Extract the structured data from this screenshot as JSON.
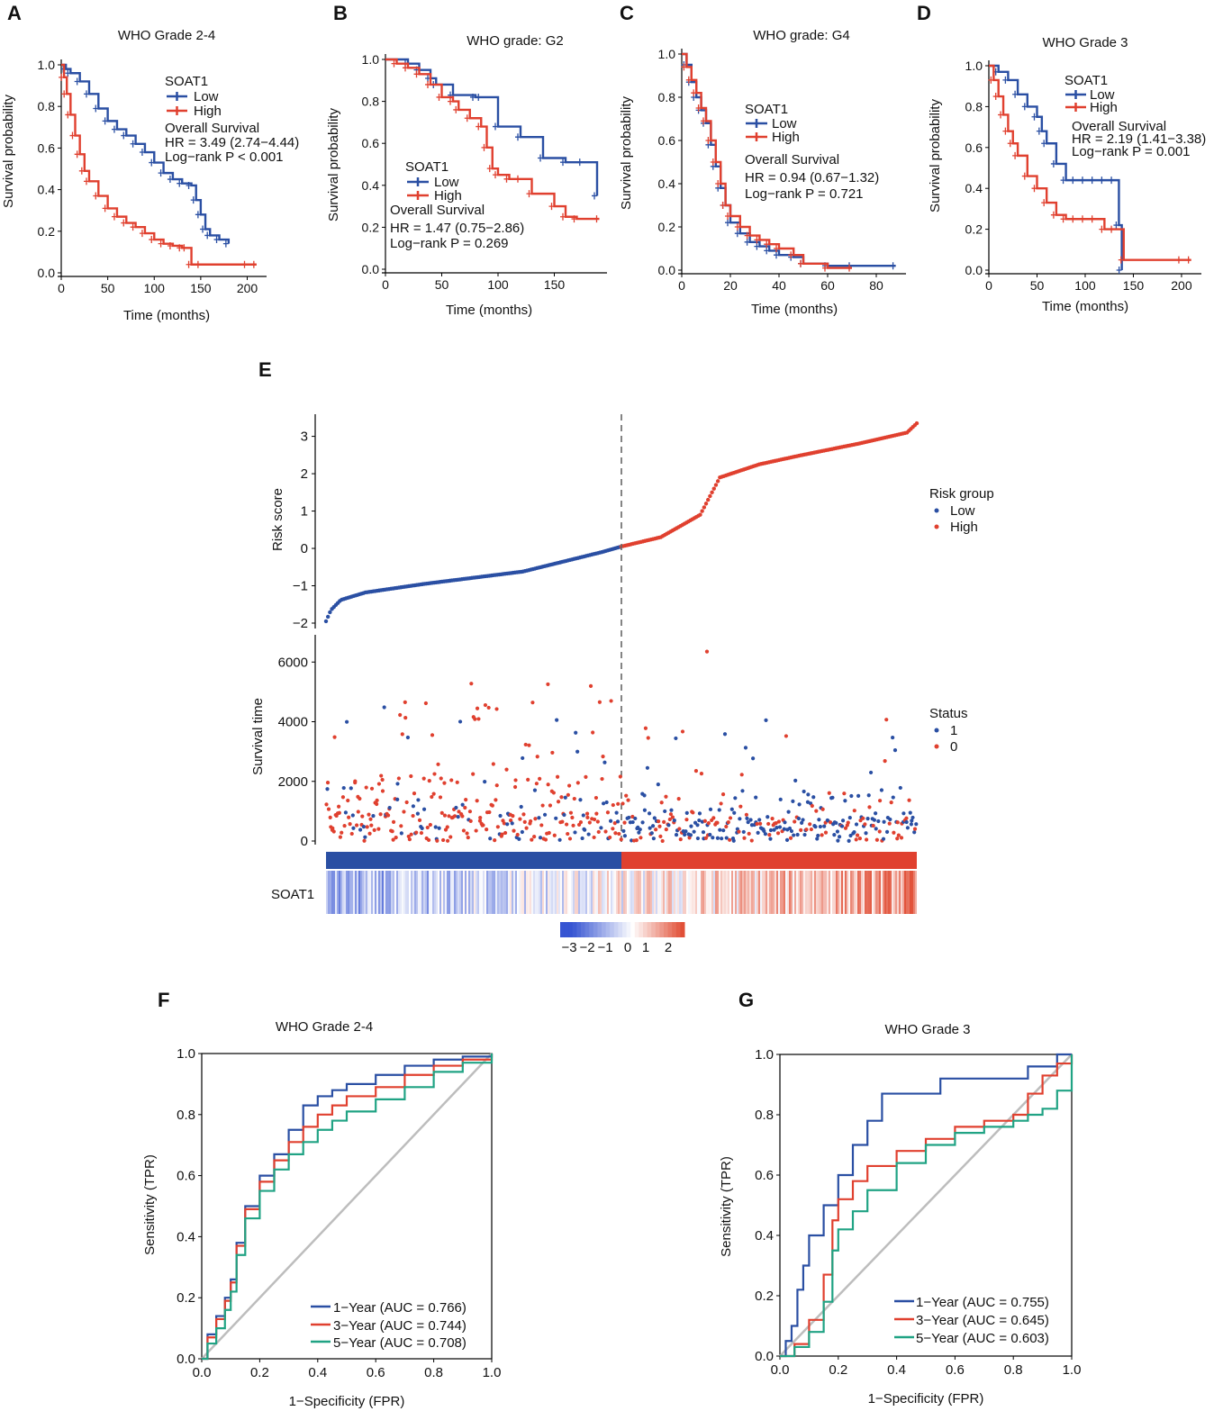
{
  "colors": {
    "low": "#2a4fa3",
    "high": "#e0402f",
    "teal": "#20a384",
    "diag": "#bdbdbd",
    "dash": "#666666"
  },
  "chart_data": [
    {
      "id": "A",
      "type": "line",
      "title": "WHO Grade 2-4",
      "xlabel": "Time (months)",
      "ylabel": "Survival probability",
      "xlim": [
        0,
        215
      ],
      "ylim": [
        0,
        1.0
      ],
      "xticks": [
        0,
        50,
        100,
        150,
        200
      ],
      "yticks": [
        0.0,
        0.2,
        0.4,
        0.6,
        0.8,
        1.0
      ],
      "legend_title": "SOAT1",
      "stats": [
        "Overall Survival",
        "HR = 3.49 (2.74−4.44)",
        "Log−rank P < 0.001"
      ],
      "series": [
        {
          "name": "Low",
          "x": [
            0,
            5,
            10,
            20,
            30,
            40,
            50,
            60,
            70,
            80,
            90,
            100,
            110,
            120,
            130,
            140,
            145,
            150,
            155,
            160,
            170,
            180
          ],
          "y": [
            1.0,
            0.98,
            0.96,
            0.92,
            0.86,
            0.79,
            0.73,
            0.69,
            0.66,
            0.62,
            0.58,
            0.53,
            0.48,
            0.45,
            0.43,
            0.42,
            0.35,
            0.28,
            0.21,
            0.18,
            0.16,
            0.14
          ]
        },
        {
          "name": "High",
          "x": [
            0,
            3,
            6,
            10,
            15,
            20,
            25,
            30,
            40,
            50,
            60,
            70,
            80,
            90,
            100,
            110,
            120,
            130,
            135,
            140,
            150,
            200,
            210
          ],
          "y": [
            1.0,
            0.94,
            0.86,
            0.76,
            0.66,
            0.57,
            0.49,
            0.44,
            0.37,
            0.31,
            0.27,
            0.24,
            0.22,
            0.19,
            0.16,
            0.14,
            0.13,
            0.12,
            0.12,
            0.04,
            0.04,
            0.04,
            0.04
          ]
        }
      ]
    },
    {
      "id": "B",
      "type": "line",
      "title": "WHO grade: G2",
      "xlabel": "Time (months)",
      "ylabel": "Survival probability",
      "xlim": [
        0,
        192
      ],
      "ylim": [
        0,
        1.0
      ],
      "xticks": [
        0,
        50,
        100,
        150
      ],
      "yticks": [
        0.0,
        0.2,
        0.4,
        0.6,
        0.8,
        1.0
      ],
      "legend_title": "SOAT1",
      "stats": [
        "Overall Survival",
        "HR = 1.47 (0.75−2.86)",
        "Log−rank P = 0.269"
      ],
      "series": [
        {
          "name": "Low",
          "x": [
            0,
            20,
            30,
            40,
            45,
            60,
            80,
            85,
            100,
            120,
            140,
            160,
            175,
            188
          ],
          "y": [
            1.0,
            0.98,
            0.95,
            0.91,
            0.88,
            0.83,
            0.82,
            0.82,
            0.68,
            0.63,
            0.53,
            0.51,
            0.51,
            0.35
          ]
        },
        {
          "name": "High",
          "x": [
            0,
            10,
            20,
            30,
            40,
            50,
            60,
            65,
            75,
            85,
            90,
            95,
            100,
            110,
            120,
            130,
            150,
            160,
            170,
            190
          ],
          "y": [
            1.0,
            0.98,
            0.96,
            0.93,
            0.88,
            0.82,
            0.8,
            0.76,
            0.72,
            0.68,
            0.58,
            0.48,
            0.45,
            0.43,
            0.43,
            0.36,
            0.3,
            0.25,
            0.24,
            0.24
          ]
        }
      ]
    },
    {
      "id": "C",
      "type": "line",
      "title": "WHO grade: G4",
      "xlabel": "Time (months)",
      "ylabel": "Survival probability",
      "xlim": [
        0,
        90
      ],
      "ylim": [
        0,
        1.0
      ],
      "xticks": [
        0,
        20,
        40,
        60,
        80
      ],
      "yticks": [
        0.0,
        0.2,
        0.4,
        0.6,
        0.8,
        1.0
      ],
      "legend_title": "SOAT1",
      "stats": [
        "Overall Survival",
        "HR = 0.94 (0.67−1.32)",
        "Log−rank P = 0.721"
      ],
      "series": [
        {
          "name": "Low",
          "x": [
            0,
            2,
            4,
            6,
            8,
            10,
            12,
            14,
            16,
            18,
            20,
            24,
            28,
            32,
            36,
            40,
            46,
            50,
            60,
            70,
            88
          ],
          "y": [
            1.0,
            0.95,
            0.87,
            0.8,
            0.74,
            0.68,
            0.58,
            0.48,
            0.38,
            0.3,
            0.22,
            0.17,
            0.13,
            0.11,
            0.09,
            0.07,
            0.06,
            0.03,
            0.02,
            0.02,
            0.02
          ]
        },
        {
          "name": "High",
          "x": [
            0,
            2,
            4,
            6,
            8,
            10,
            12,
            14,
            16,
            18,
            20,
            24,
            28,
            32,
            36,
            40,
            46,
            50,
            60,
            70
          ],
          "y": [
            1.0,
            0.94,
            0.88,
            0.82,
            0.75,
            0.69,
            0.6,
            0.5,
            0.4,
            0.3,
            0.25,
            0.2,
            0.16,
            0.14,
            0.12,
            0.1,
            0.07,
            0.03,
            0.01,
            0.01
          ]
        }
      ]
    },
    {
      "id": "D",
      "type": "line",
      "title": "WHO Grade 3",
      "xlabel": "Time (months)",
      "ylabel": "Survival probability",
      "xlim": [
        0,
        215
      ],
      "ylim": [
        0,
        1.0
      ],
      "xticks": [
        0,
        50,
        100,
        150,
        200
      ],
      "yticks": [
        0.0,
        0.2,
        0.4,
        0.6,
        0.8,
        1.0
      ],
      "legend_title": "SOAT1",
      "stats": [
        "Overall Survival",
        "HR = 2.19 (1.41−3.38)",
        "Log−rank P = 0.001"
      ],
      "series": [
        {
          "name": "Low",
          "x": [
            0,
            10,
            20,
            30,
            40,
            50,
            55,
            60,
            70,
            80,
            90,
            100,
            110,
            120,
            130,
            135,
            138
          ],
          "y": [
            1.0,
            0.97,
            0.93,
            0.86,
            0.8,
            0.75,
            0.68,
            0.62,
            0.52,
            0.44,
            0.44,
            0.44,
            0.44,
            0.44,
            0.44,
            0.22,
            0.0
          ]
        },
        {
          "name": "High",
          "x": [
            0,
            5,
            10,
            15,
            20,
            25,
            30,
            40,
            50,
            60,
            70,
            80,
            90,
            100,
            110,
            120,
            130,
            140,
            200,
            210
          ],
          "y": [
            1.0,
            0.93,
            0.85,
            0.76,
            0.68,
            0.62,
            0.56,
            0.46,
            0.4,
            0.33,
            0.27,
            0.25,
            0.25,
            0.25,
            0.25,
            0.2,
            0.2,
            0.05,
            0.05,
            0.05
          ]
        }
      ]
    },
    {
      "id": "E",
      "type": "scatter",
      "risk_panel": {
        "ylabel": "Risk score",
        "ylim": [
          -2,
          3.4
        ],
        "yticks": [
          -2,
          -1,
          0,
          1,
          2,
          3
        ],
        "n": 600,
        "cutoff_index": 300,
        "curve_index": [
          0,
          5,
          15,
          40,
          100,
          200,
          280,
          300,
          340,
          380,
          400,
          440,
          480,
          540,
          590,
          600
        ],
        "curve_value": [
          -1.95,
          -1.65,
          -1.38,
          -1.18,
          -0.95,
          -0.62,
          -0.1,
          0.05,
          0.3,
          0.9,
          1.9,
          2.25,
          2.48,
          2.8,
          3.1,
          3.35
        ]
      },
      "risk_legend": {
        "title": "Risk group",
        "items": [
          "Low",
          "High"
        ]
      },
      "survival_panel": {
        "ylabel": "Survival time",
        "ylim": [
          0,
          6400
        ],
        "yticks": [
          0,
          2000,
          4000,
          6000
        ]
      },
      "status_legend": {
        "title": "Status",
        "items": [
          "1",
          "0"
        ]
      },
      "heatmap_label": "SOAT1",
      "colorbar_ticks": [
        "−3",
        "−2",
        "−1",
        "0",
        "1",
        "2"
      ]
    },
    {
      "id": "F",
      "type": "line",
      "title": "WHO Grade 2-4",
      "xlabel": "1−Specificity (FPR)",
      "ylabel": "Sensitivity (TPR)",
      "xlim": [
        0,
        1
      ],
      "ylim": [
        0,
        1
      ],
      "xticks": [
        0.0,
        0.2,
        0.4,
        0.6,
        0.8,
        1.0
      ],
      "yticks": [
        0.0,
        0.2,
        0.4,
        0.6,
        0.8,
        1.0
      ],
      "series": [
        {
          "name": "1−Year (AUC = 0.766)",
          "x": [
            0,
            0.02,
            0.05,
            0.08,
            0.1,
            0.12,
            0.15,
            0.2,
            0.25,
            0.3,
            0.35,
            0.4,
            0.45,
            0.5,
            0.6,
            0.7,
            0.8,
            0.9,
            1.0
          ],
          "y": [
            0,
            0.08,
            0.14,
            0.2,
            0.26,
            0.38,
            0.5,
            0.6,
            0.67,
            0.75,
            0.83,
            0.86,
            0.88,
            0.9,
            0.93,
            0.96,
            0.98,
            0.99,
            1.0
          ]
        },
        {
          "name": "3−Year (AUC = 0.744)",
          "x": [
            0,
            0.02,
            0.05,
            0.08,
            0.1,
            0.12,
            0.15,
            0.2,
            0.25,
            0.3,
            0.35,
            0.4,
            0.45,
            0.5,
            0.6,
            0.7,
            0.8,
            0.9,
            1.0
          ],
          "y": [
            0,
            0.07,
            0.13,
            0.19,
            0.25,
            0.37,
            0.49,
            0.58,
            0.65,
            0.71,
            0.76,
            0.8,
            0.83,
            0.86,
            0.89,
            0.93,
            0.96,
            0.98,
            1.0
          ]
        },
        {
          "name": "5−Year (AUC = 0.708)",
          "x": [
            0,
            0.02,
            0.05,
            0.08,
            0.1,
            0.12,
            0.15,
            0.2,
            0.25,
            0.3,
            0.35,
            0.4,
            0.45,
            0.5,
            0.6,
            0.7,
            0.8,
            0.9,
            1.0
          ],
          "y": [
            0,
            0.05,
            0.1,
            0.16,
            0.22,
            0.34,
            0.46,
            0.55,
            0.62,
            0.67,
            0.71,
            0.75,
            0.78,
            0.81,
            0.85,
            0.89,
            0.94,
            0.97,
            1.0
          ]
        }
      ]
    },
    {
      "id": "G",
      "type": "line",
      "title": "WHO Grade 3",
      "xlabel": "1−Specificity (FPR)",
      "ylabel": "Sensitivity (TPR)",
      "xlim": [
        0,
        1
      ],
      "ylim": [
        0,
        1
      ],
      "xticks": [
        0.0,
        0.2,
        0.4,
        0.6,
        0.8,
        1.0
      ],
      "yticks": [
        0.0,
        0.2,
        0.4,
        0.6,
        0.8,
        1.0
      ],
      "series": [
        {
          "name": "1−Year (AUC = 0.755)",
          "x": [
            0,
            0.02,
            0.04,
            0.06,
            0.08,
            0.1,
            0.15,
            0.2,
            0.25,
            0.3,
            0.35,
            0.5,
            0.55,
            0.85,
            0.88,
            0.95,
            1.0
          ],
          "y": [
            0,
            0.05,
            0.1,
            0.22,
            0.3,
            0.4,
            0.5,
            0.6,
            0.7,
            0.78,
            0.87,
            0.87,
            0.92,
            0.96,
            0.96,
            1.0,
            1.0
          ]
        },
        {
          "name": "3−Year (AUC = 0.645)",
          "x": [
            0,
            0.05,
            0.1,
            0.15,
            0.18,
            0.2,
            0.25,
            0.3,
            0.4,
            0.5,
            0.6,
            0.7,
            0.8,
            0.85,
            0.9,
            0.95,
            1.0
          ],
          "y": [
            0,
            0.04,
            0.12,
            0.27,
            0.45,
            0.52,
            0.58,
            0.63,
            0.68,
            0.72,
            0.76,
            0.78,
            0.8,
            0.87,
            0.93,
            0.97,
            1.0
          ]
        },
        {
          "name": "5−Year (AUC = 0.603)",
          "x": [
            0,
            0.05,
            0.1,
            0.15,
            0.18,
            0.2,
            0.25,
            0.3,
            0.4,
            0.5,
            0.6,
            0.7,
            0.8,
            0.85,
            0.9,
            0.95,
            1.0
          ],
          "y": [
            0,
            0.03,
            0.08,
            0.18,
            0.35,
            0.42,
            0.48,
            0.55,
            0.64,
            0.7,
            0.74,
            0.76,
            0.78,
            0.8,
            0.82,
            0.88,
            1.0
          ]
        }
      ]
    }
  ]
}
